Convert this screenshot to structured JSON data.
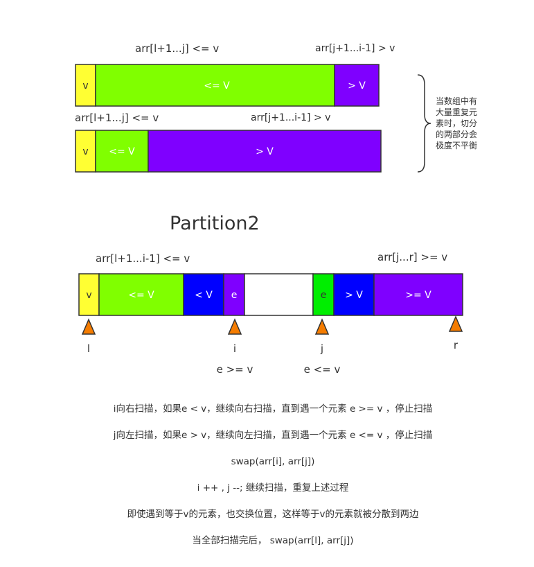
{
  "top": {
    "row1": {
      "label_left": "arr[l+1...j]  <= v",
      "label_right": "arr[j+1...i-1]  > v",
      "seg_v": "v",
      "seg_le": "<= V",
      "seg_gt": "> V"
    },
    "row2": {
      "label_left": "arr[l+1...j]  <= v",
      "label_right": "arr[j+1...i-1]  > v",
      "seg_v": "v",
      "seg_le": "<= V",
      "seg_gt": "> V"
    },
    "side_note": [
      "当数组中有",
      "大量重复元",
      "素时，切分",
      "的两部分会",
      "极度不平衡"
    ]
  },
  "partition2": {
    "title": "Partition2",
    "label_left": "arr[l+1...i-1]  <= v",
    "label_right": "arr[j...r]  >= v",
    "segments": {
      "v": "v",
      "le": "<= V",
      "lt": "< V",
      "e_left": "e",
      "e_right": "e",
      "gt": "> V",
      "ge": ">= V"
    },
    "pointers": {
      "l": "l",
      "i": "i",
      "j": "j",
      "r": "r"
    },
    "cond_i": "e  >= v",
    "cond_j": "e  <= v"
  },
  "notes": [
    "i向右扫描，如果e < v，继续向右扫描，直到遇一个元素 e >= v ，停止扫描",
    "j向左扫描，如果e > v，继续向左扫描，直到遇一个元素 e <= v ，停止扫描",
    "swap(arr[i], arr[j])",
    "i ++ , j --; 继续扫描，重复上述过程",
    "即使遇到等于v的元素，也交换位置，这样等于v的元素就被分散到两边",
    "当全部扫描完后，  swap(arr[l], arr[j])"
  ],
  "colors": {
    "yellow": "#ffff33",
    "green": "#80ff00",
    "purple": "#7f00ff",
    "blue": "#0000ff",
    "bright_green": "#00ee00",
    "orange": "#f57c00"
  }
}
